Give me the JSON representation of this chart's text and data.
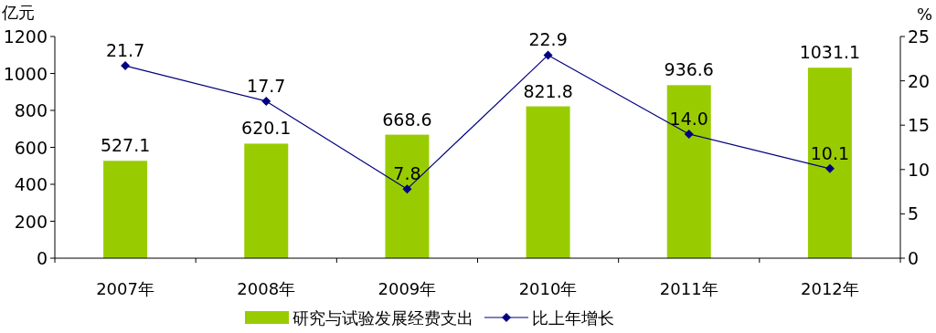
{
  "chart_data": {
    "type": "bar",
    "ylabel": "亿元",
    "y2label": "%",
    "categories": [
      "2007年",
      "2008年",
      "2009年",
      "2010年",
      "2011年",
      "2012年"
    ],
    "series": [
      {
        "name": "研究与试验发展经费支出",
        "color": "#99cc00",
        "values": [
          527.1,
          620.1,
          668.6,
          821.8,
          936.6,
          1031.1
        ]
      },
      {
        "name": "比上年增长",
        "type": "line",
        "axis": "y2",
        "color": "#000080",
        "marker": "diamond",
        "values": [
          21.7,
          17.7,
          7.8,
          22.9,
          14.0,
          10.1
        ],
        "value_labels": [
          "21.7",
          "17.7",
          "7.8",
          "22.9",
          "14.0",
          "10.1"
        ]
      }
    ],
    "ylim": [
      0,
      1200
    ],
    "yticks": [
      0,
      200,
      400,
      600,
      800,
      1000,
      1200
    ],
    "y2lim": [
      0,
      25
    ],
    "y2ticks": [
      0,
      5,
      10,
      15,
      20,
      25
    ],
    "data_labels": true,
    "legend": "bottom",
    "grid": false
  }
}
